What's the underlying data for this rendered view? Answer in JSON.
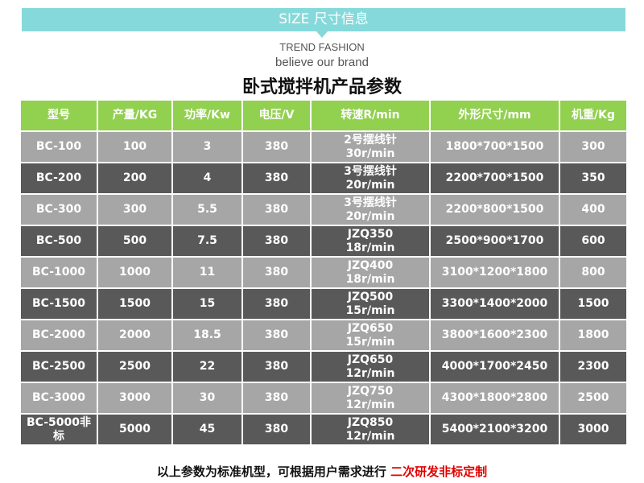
{
  "banner": "SIZE 尺寸信息",
  "subtitle1": "TREND FASHION",
  "subtitle2": "believe our brand",
  "title": "卧式搅拌机产品参数",
  "headers": [
    "型号",
    "产量/KG",
    "功率/Kw",
    "电压/V",
    "转速R/min",
    "外形尺寸/mm",
    "机重/Kg"
  ],
  "rows": [
    {
      "model": "BC-100",
      "output": "100",
      "power": "3",
      "voltage": "380",
      "speed1": "2号摆线针",
      "speed2": "30r/min",
      "size": "1800*700*1500",
      "weight": "300"
    },
    {
      "model": "BC-200",
      "output": "200",
      "power": "4",
      "voltage": "380",
      "speed1": "3号摆线针",
      "speed2": "20r/min",
      "size": "2200*700*1500",
      "weight": "350"
    },
    {
      "model": "BC-300",
      "output": "300",
      "power": "5.5",
      "voltage": "380",
      "speed1": "3号摆线针",
      "speed2": "20r/min",
      "size": "2200*800*1500",
      "weight": "400"
    },
    {
      "model": "BC-500",
      "output": "500",
      "power": "7.5",
      "voltage": "380",
      "speed1": "JZQ350",
      "speed2": "18r/min",
      "size": "2500*900*1700",
      "weight": "600"
    },
    {
      "model": "BC-1000",
      "output": "1000",
      "power": "11",
      "voltage": "380",
      "speed1": "JZQ400",
      "speed2": "18r/min",
      "size": "3100*1200*1800",
      "weight": "800"
    },
    {
      "model": "BC-1500",
      "output": "1500",
      "power": "15",
      "voltage": "380",
      "speed1": "JZQ500",
      "speed2": "15r/min",
      "size": "3300*1400*2000",
      "weight": "1500"
    },
    {
      "model": "BC-2000",
      "output": "2000",
      "power": "18.5",
      "voltage": "380",
      "speed1": "JZQ650",
      "speed2": "15r/min",
      "size": "3800*1600*2300",
      "weight": "1800"
    },
    {
      "model": "BC-2500",
      "output": "2500",
      "power": "22",
      "voltage": "380",
      "speed1": "JZQ650",
      "speed2": "12r/min",
      "size": "4000*1700*2450",
      "weight": "2300"
    },
    {
      "model": "BC-3000",
      "output": "3000",
      "power": "30",
      "voltage": "380",
      "speed1": "JZQ750",
      "speed2": "12r/min",
      "size": "4300*1800*2800",
      "weight": "2500"
    },
    {
      "model": "BC-5000非标",
      "output": "5000",
      "power": "45",
      "voltage": "380",
      "speed1": "JZQ850",
      "speed2": "12r/min",
      "size": "5400*2100*3200",
      "weight": "3000"
    }
  ],
  "footer": {
    "text": "以上参数为标准机型，可根据用户需求进行 ",
    "highlight": "二次研发非标定制"
  },
  "colors": {
    "banner": "#86d9da",
    "header": "#92d050",
    "row_light": "#a6a6a6",
    "row_dark": "#595959",
    "highlight": "#e00000"
  }
}
